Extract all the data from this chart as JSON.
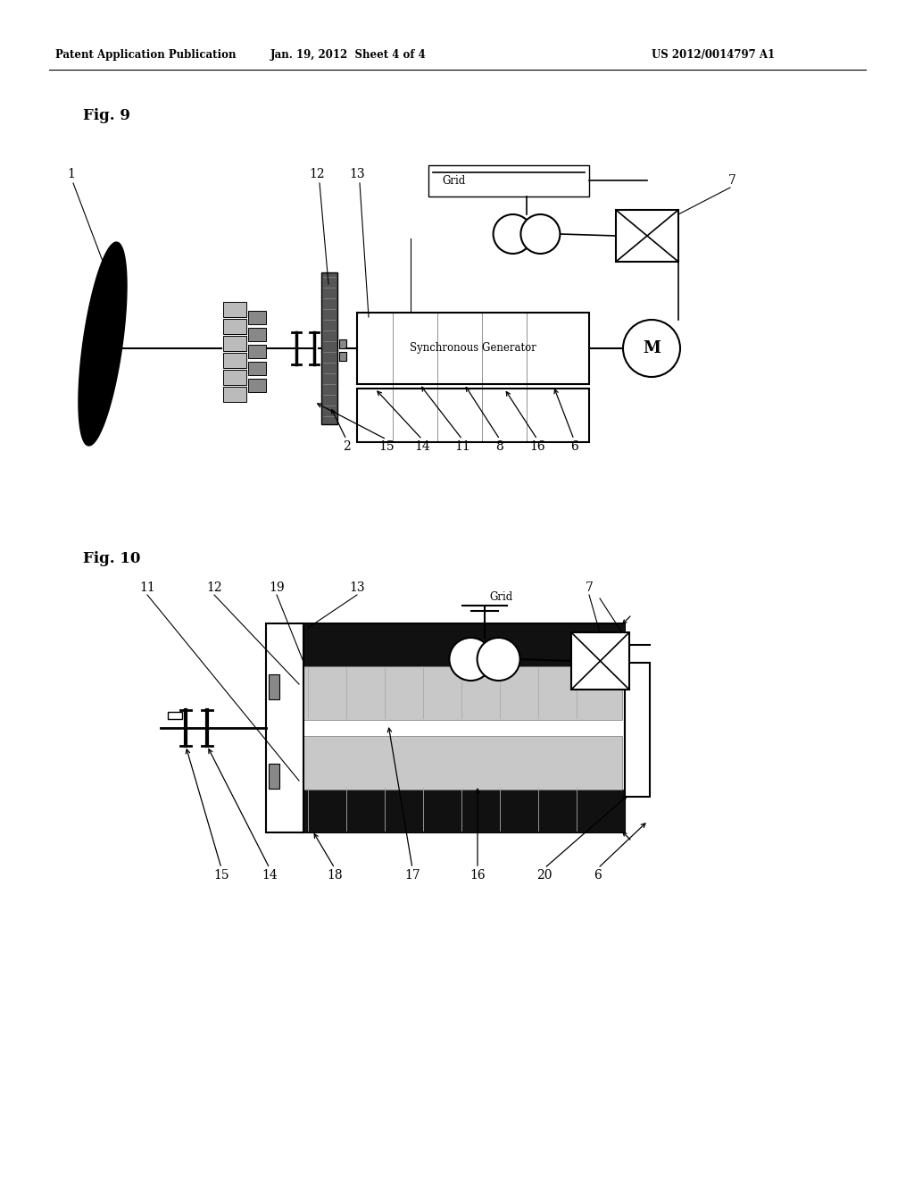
{
  "header_left": "Patent Application Publication",
  "header_mid": "Jan. 19, 2012  Sheet 4 of 4",
  "header_right": "US 2012/0014797 A1",
  "fig9_label": "Fig. 9",
  "fig10_label": "Fig. 10",
  "bg_color": "#ffffff",
  "lc": "#000000",
  "dark_gray": "#555555",
  "medium_gray": "#888888",
  "light_gray": "#bbbbbb",
  "dark_fill": "#222222",
  "very_dark": "#111111"
}
